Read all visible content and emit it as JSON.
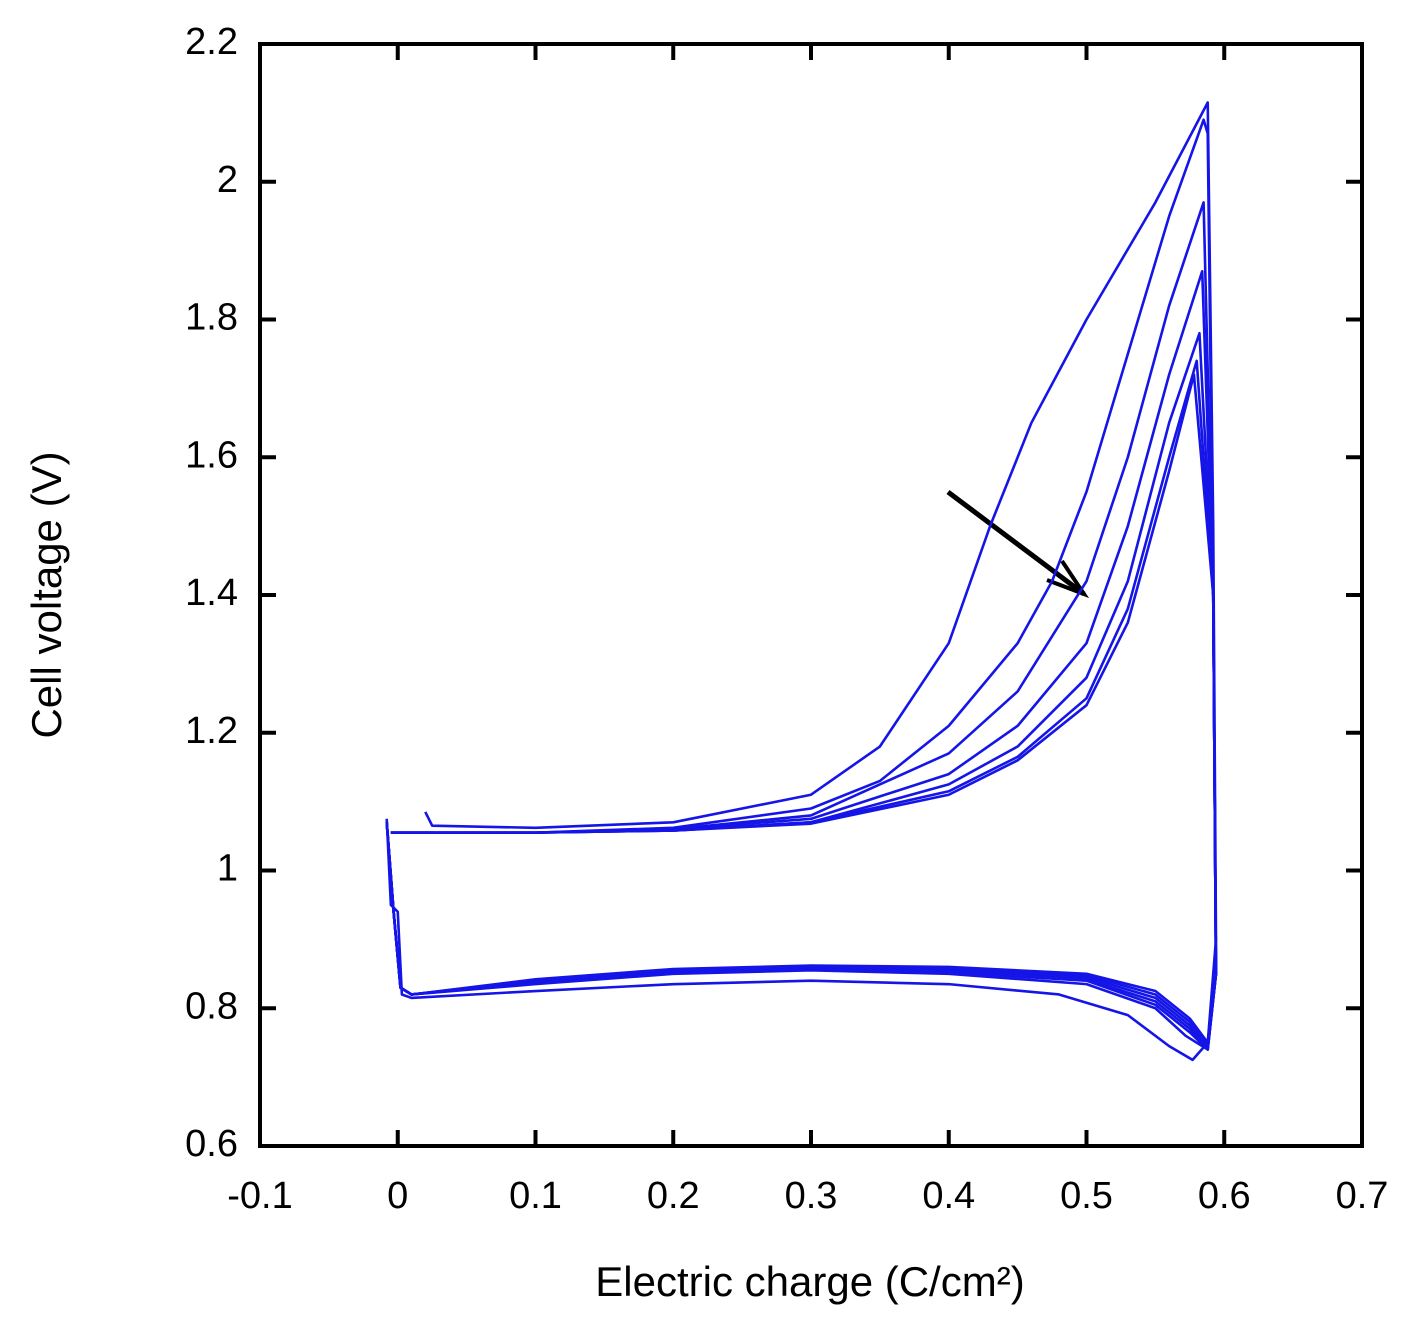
{
  "chart_data": {
    "type": "line",
    "xlabel": "Electric charge (C/cm²)",
    "ylabel": "Cell voltage (V)",
    "xlim": [
      -0.1,
      0.7
    ],
    "ylim": [
      0.6,
      2.2
    ],
    "xticks": [
      -0.1,
      0,
      0.1,
      0.2,
      0.3,
      0.4,
      0.5,
      0.6,
      0.7
    ],
    "yticks": [
      0.6,
      0.8,
      1,
      1.2,
      1.4,
      1.6,
      1.8,
      2,
      2.2
    ],
    "grid": false,
    "series": [
      {
        "color": "#1515e8",
        "x": [
          0.02,
          0.025,
          0.1,
          0.2,
          0.3,
          0.35,
          0.4,
          0.43,
          0.46,
          0.5,
          0.55,
          0.588,
          0.592,
          0.594,
          0.588,
          0.577,
          0.56,
          0.53,
          0.48,
          0.4,
          0.3,
          0.2,
          0.1,
          0.01,
          0.003,
          0.0,
          -0.005,
          -0.008
        ],
        "values": [
          1.085,
          1.065,
          1.062,
          1.07,
          1.11,
          1.18,
          1.33,
          1.5,
          1.65,
          1.8,
          1.97,
          2.115,
          1.5,
          0.9,
          0.75,
          0.725,
          0.745,
          0.79,
          0.82,
          0.835,
          0.84,
          0.835,
          0.825,
          0.815,
          0.82,
          0.94,
          0.95,
          1.075
        ]
      },
      {
        "color": "#1515e8",
        "x": [
          -0.005,
          0.1,
          0.2,
          0.3,
          0.35,
          0.4,
          0.45,
          0.475,
          0.5,
          0.53,
          0.56,
          0.585,
          0.588,
          0.592,
          0.594,
          0.588,
          0.572,
          0.55,
          0.5,
          0.4,
          0.3,
          0.2,
          0.1,
          0.01,
          0.002,
          -0.003,
          -0.008
        ],
        "values": [
          1.055,
          1.055,
          1.062,
          1.09,
          1.13,
          1.21,
          1.33,
          1.42,
          1.55,
          1.75,
          1.95,
          2.09,
          2.07,
          1.4,
          0.85,
          0.74,
          0.76,
          0.8,
          0.835,
          0.85,
          0.855,
          0.85,
          0.835,
          0.82,
          0.83,
          0.94,
          1.07
        ]
      },
      {
        "color": "#1515e8",
        "x": [
          -0.005,
          0.1,
          0.2,
          0.3,
          0.4,
          0.45,
          0.5,
          0.53,
          0.56,
          0.585,
          0.592,
          0.594,
          0.588,
          0.575,
          0.55,
          0.5,
          0.4,
          0.3,
          0.2,
          0.1,
          0.01,
          0.002,
          -0.003,
          -0.008
        ],
        "values": [
          1.055,
          1.055,
          1.06,
          1.08,
          1.17,
          1.26,
          1.42,
          1.6,
          1.82,
          1.97,
          1.4,
          0.85,
          0.74,
          0.765,
          0.805,
          0.84,
          0.852,
          0.857,
          0.852,
          0.837,
          0.82,
          0.83,
          0.94,
          1.07
        ]
      },
      {
        "color": "#1515e8",
        "x": [
          -0.005,
          0.1,
          0.2,
          0.3,
          0.4,
          0.45,
          0.5,
          0.53,
          0.56,
          0.584,
          0.592,
          0.594,
          0.588,
          0.575,
          0.55,
          0.5,
          0.4,
          0.3,
          0.2,
          0.1,
          0.01,
          0.002,
          -0.003,
          -0.008
        ],
        "values": [
          1.055,
          1.055,
          1.06,
          1.075,
          1.14,
          1.21,
          1.33,
          1.5,
          1.72,
          1.87,
          1.4,
          0.85,
          0.74,
          0.77,
          0.81,
          0.842,
          0.855,
          0.858,
          0.854,
          0.838,
          0.82,
          0.83,
          0.94,
          1.07
        ]
      },
      {
        "color": "#1515e8",
        "x": [
          -0.005,
          0.1,
          0.2,
          0.3,
          0.4,
          0.45,
          0.5,
          0.53,
          0.56,
          0.582,
          0.592,
          0.594,
          0.588,
          0.575,
          0.55,
          0.5,
          0.4,
          0.3,
          0.2,
          0.1,
          0.01,
          0.002,
          -0.003,
          -0.008
        ],
        "values": [
          1.055,
          1.055,
          1.058,
          1.07,
          1.125,
          1.18,
          1.28,
          1.42,
          1.65,
          1.78,
          1.4,
          0.85,
          0.745,
          0.775,
          0.815,
          0.845,
          0.857,
          0.86,
          0.855,
          0.84,
          0.82,
          0.83,
          0.94,
          1.07
        ]
      },
      {
        "color": "#1515e8",
        "x": [
          -0.005,
          0.1,
          0.2,
          0.3,
          0.4,
          0.45,
          0.5,
          0.53,
          0.56,
          0.58,
          0.592,
          0.594,
          0.588,
          0.575,
          0.55,
          0.5,
          0.4,
          0.3,
          0.2,
          0.1,
          0.01,
          0.002,
          -0.003,
          -0.008
        ],
        "values": [
          1.055,
          1.055,
          1.058,
          1.07,
          1.115,
          1.165,
          1.25,
          1.38,
          1.6,
          1.74,
          1.4,
          0.85,
          0.745,
          0.78,
          0.82,
          0.848,
          0.858,
          0.861,
          0.856,
          0.841,
          0.82,
          0.83,
          0.94,
          1.07
        ]
      },
      {
        "color": "#1515e8",
        "x": [
          -0.005,
          0.1,
          0.2,
          0.3,
          0.4,
          0.45,
          0.5,
          0.53,
          0.56,
          0.578,
          0.592,
          0.594,
          0.588,
          0.575,
          0.55,
          0.5,
          0.4,
          0.3,
          0.2,
          0.1,
          0.01,
          0.002,
          -0.003,
          -0.008
        ],
        "values": [
          1.055,
          1.055,
          1.058,
          1.068,
          1.11,
          1.16,
          1.24,
          1.36,
          1.58,
          1.72,
          1.4,
          0.85,
          0.75,
          0.785,
          0.825,
          0.85,
          0.86,
          0.862,
          0.857,
          0.842,
          0.82,
          0.83,
          0.94,
          1.07
        ]
      }
    ]
  }
}
